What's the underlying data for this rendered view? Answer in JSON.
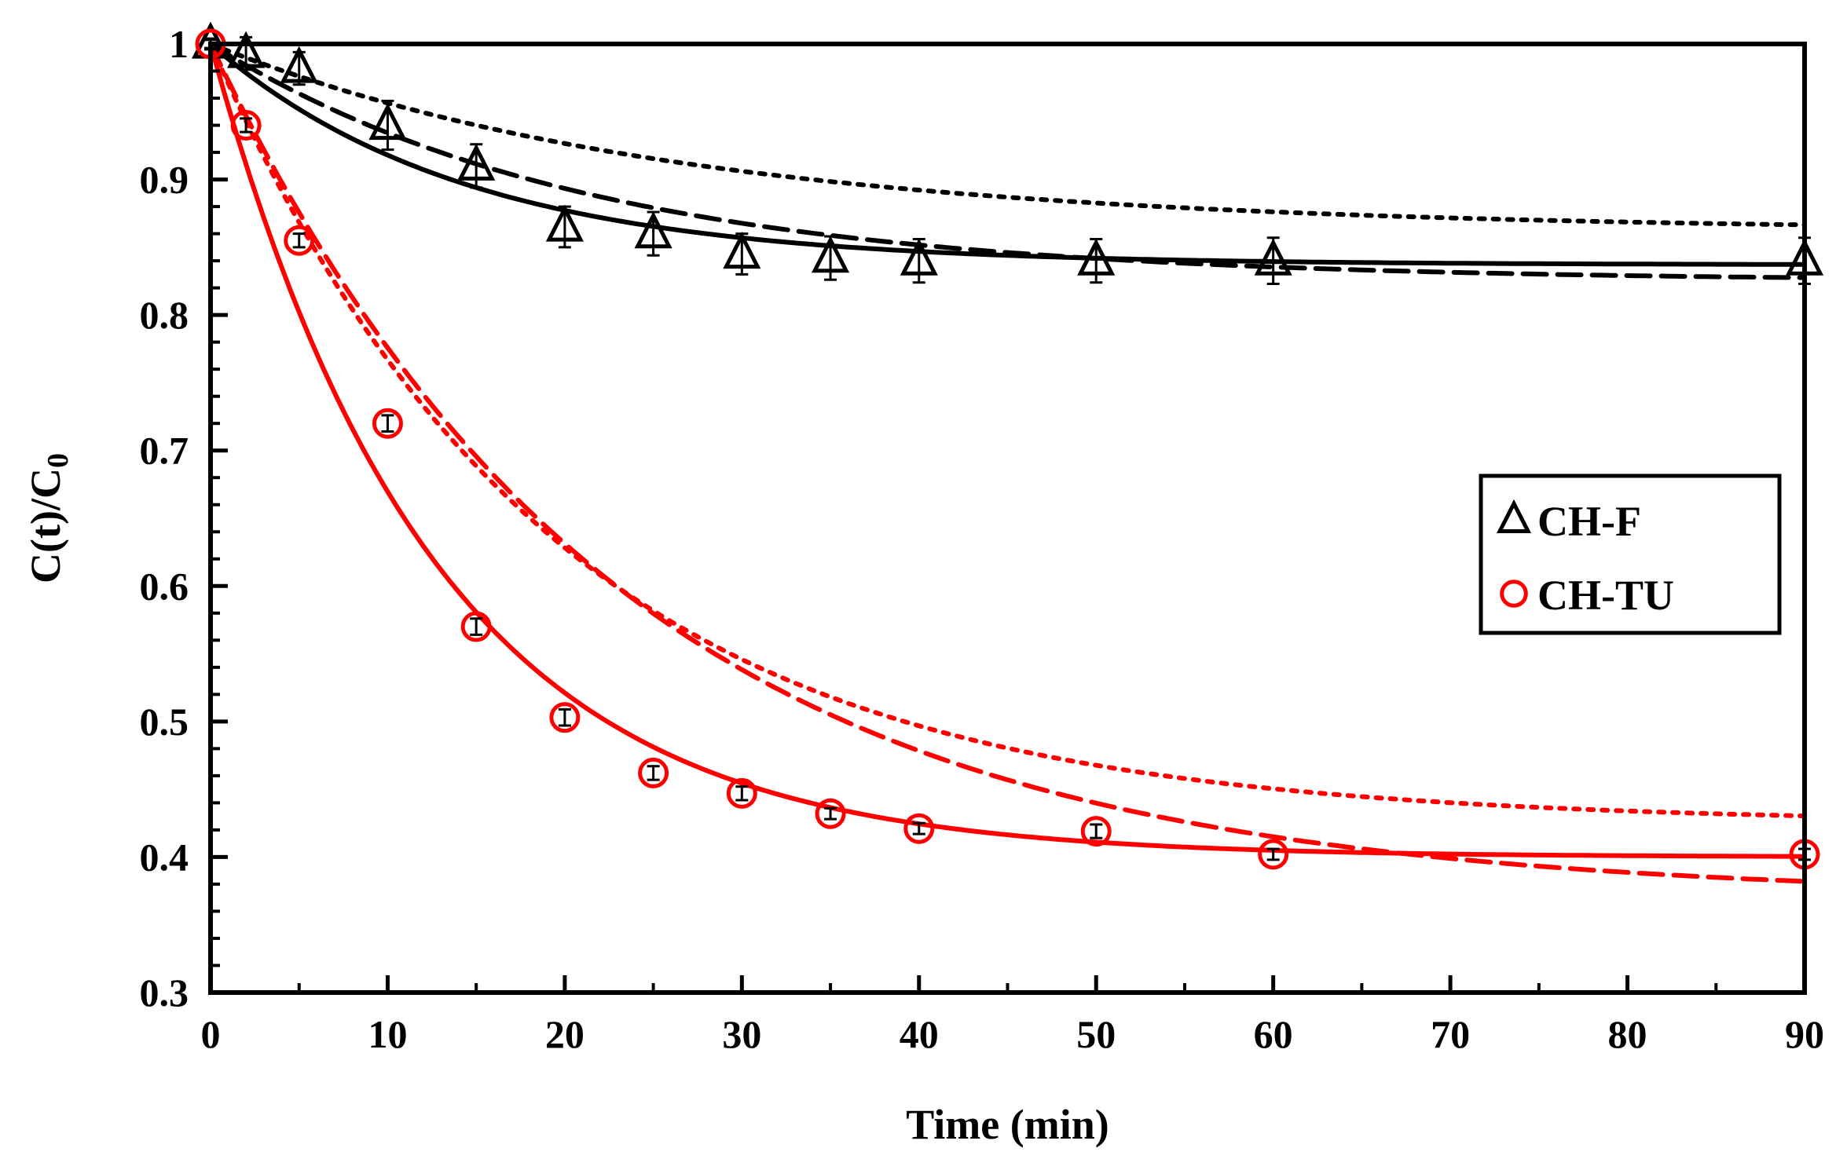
{
  "chart_data": {
    "type": "scatter",
    "title": "",
    "xlabel": "Time (min)",
    "ylabel": {
      "main": "C(t)/C",
      "subscript": "0"
    },
    "xlim": [
      0,
      90
    ],
    "ylim": [
      0.3,
      1.0
    ],
    "x_ticks": [
      "0",
      "10",
      "20",
      "30",
      "40",
      "50",
      "60",
      "70",
      "80",
      "90"
    ],
    "y_ticks": [
      "0.3",
      "0.4",
      "0.5",
      "0.6",
      "0.7",
      "0.8",
      "0.9",
      "1"
    ],
    "grid": false,
    "legend_position": "right-middle",
    "series": [
      {
        "name": "CH-F",
        "marker": "triangle",
        "color": "#000000",
        "x": [
          0,
          2,
          5,
          10,
          15,
          20,
          25,
          30,
          35,
          40,
          50,
          60,
          90
        ],
        "y": [
          1.0,
          0.993,
          0.982,
          0.94,
          0.91,
          0.865,
          0.86,
          0.845,
          0.842,
          0.84,
          0.84,
          0.84,
          0.84
        ],
        "error": [
          0.004,
          0.012,
          0.012,
          0.018,
          0.016,
          0.015,
          0.016,
          0.015,
          0.016,
          0.016,
          0.016,
          0.017,
          0.017
        ],
        "fits": [
          {
            "style": "solid",
            "model": "exponential",
            "plateau": 0.837,
            "amplitude": 0.163,
            "rate": 0.07
          },
          {
            "style": "dashed",
            "model": "exponential",
            "plateau": 0.825,
            "amplitude": 0.175,
            "rate": 0.047
          },
          {
            "style": "dotted",
            "model": "exponential",
            "plateau": 0.862,
            "amplitude": 0.138,
            "rate": 0.038
          }
        ]
      },
      {
        "name": "CH-TU",
        "marker": "circle",
        "color": "#ff0000",
        "x": [
          0,
          2,
          5,
          10,
          15,
          20,
          25,
          30,
          35,
          40,
          50,
          60,
          90
        ],
        "y": [
          1.0,
          0.94,
          0.855,
          0.72,
          0.57,
          0.503,
          0.462,
          0.447,
          0.432,
          0.421,
          0.419,
          0.402,
          0.402
        ],
        "error": [
          0.003,
          0.005,
          0.005,
          0.006,
          0.006,
          0.006,
          0.005,
          0.005,
          0.004,
          0.004,
          0.005,
          0.004,
          0.004
        ],
        "fits": [
          {
            "style": "solid",
            "model": "exponential",
            "plateau": 0.4,
            "amplitude": 0.6,
            "rate": 0.08
          },
          {
            "style": "dashed",
            "model": "exponential",
            "plateau": 0.37,
            "amplitude": 0.63,
            "rate": 0.044
          },
          {
            "style": "dotted",
            "model": "exponential",
            "plateau": 0.425,
            "amplitude": 0.575,
            "rate": 0.052
          }
        ]
      }
    ]
  }
}
